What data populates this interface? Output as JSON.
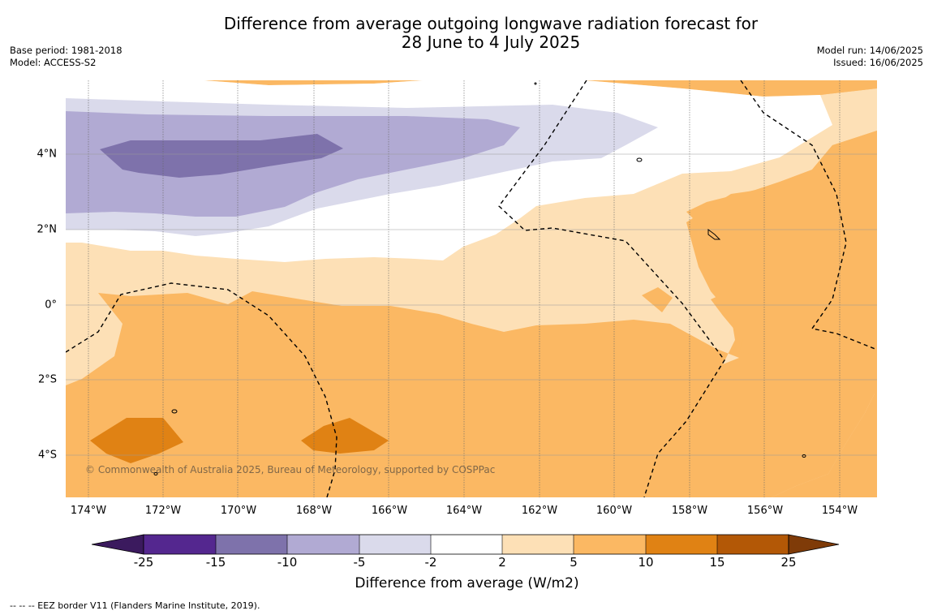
{
  "title_line1": "Difference from average outgoing longwave radiation forecast for",
  "title_line2": "28 June to 4 July 2025",
  "base_period": "Base period: 1981-2018",
  "model": "Model: ACCESS-S2",
  "model_run": "Model run: 14/06/2025",
  "issued": "Issued: 16/06/2025",
  "lat_labels": [
    "4°N",
    "2°N",
    "0°",
    "2°S",
    "4°S"
  ],
  "lon_labels": [
    "174°W",
    "172°W",
    "170°W",
    "168°W",
    "166°W",
    "164°W",
    "162°W",
    "160°W",
    "158°W",
    "156°W",
    "154°W"
  ],
  "credit": "© Commonwealth of Australia 2025, Bureau of Meteorology, supported by COSPPac",
  "colorbar": {
    "ticks": [
      "-25",
      "-15",
      "-10",
      "-5",
      "-2",
      "2",
      "5",
      "10",
      "15",
      "25"
    ],
    "label": "Difference from average (W/m2)",
    "colors": [
      "#3b1a5e",
      "#54278f",
      "#7e72ab",
      "#b1aad3",
      "#dadaeb",
      "#ffffff",
      "#fde0b6",
      "#fbb863",
      "#e08214",
      "#b35806",
      "#7f3b08"
    ]
  },
  "footnote": "--  --  -- EEZ border V11 (Flanders Marine Institute, 2019)."
}
